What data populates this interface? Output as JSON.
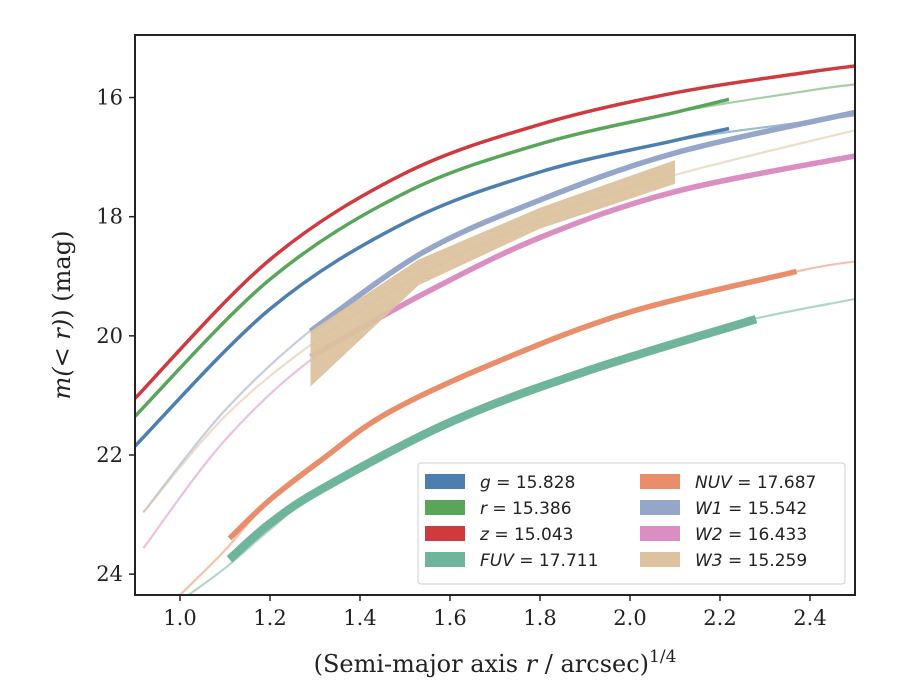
{
  "chart_data": {
    "type": "line",
    "title": "",
    "xlabel": {
      "open": "(Semi-major axis ",
      "var": "r",
      "mid": " / arcsec)",
      "sup": "1/4"
    },
    "ylabel": {
      "pre": "m(",
      "mid": "< r",
      "post": ") (mag)"
    },
    "xlim": [
      0.9,
      2.5
    ],
    "ylim": [
      24.35,
      14.95
    ],
    "y_inverted": true,
    "xticks": [
      "1.0",
      "1.2",
      "1.4",
      "1.6",
      "1.8",
      "2.0",
      "2.2",
      "2.4"
    ],
    "yticks": [
      "16",
      "18",
      "20",
      "22",
      "24"
    ],
    "grid": false,
    "legend_placement": "lower-right",
    "legend_columns": 2,
    "series": [
      {
        "name": "g",
        "legend_value": "15.828",
        "color": "#4c7fb0",
        "band": "thin",
        "model": {
          "x": [
            0.9,
            1.2,
            1.5,
            1.8,
            2.1,
            2.4,
            2.5
          ],
          "y": [
            21.85,
            19.55,
            18.1,
            17.25,
            16.72,
            16.4,
            16.3
          ]
        },
        "measured": {
          "x": [
            0.9,
            1.2,
            1.5,
            1.8,
            2.1,
            2.22
          ],
          "y": [
            21.85,
            19.55,
            18.1,
            17.25,
            16.72,
            16.52
          ]
        }
      },
      {
        "name": "r",
        "legend_value": "15.386",
        "color": "#59a55a",
        "band": "thin",
        "model": {
          "x": [
            0.9,
            1.2,
            1.5,
            1.8,
            2.1,
            2.4,
            2.5
          ],
          "y": [
            21.35,
            19.05,
            17.6,
            16.78,
            16.25,
            15.88,
            15.78
          ]
        },
        "measured": {
          "x": [
            0.9,
            1.2,
            1.5,
            1.8,
            2.1,
            2.22
          ],
          "y": [
            21.35,
            19.05,
            17.6,
            16.78,
            16.25,
            16.03
          ]
        }
      },
      {
        "name": "z",
        "legend_value": "15.043",
        "color": "#cf3a3f",
        "band": "thin",
        "model": {
          "x": [
            0.9,
            1.2,
            1.5,
            1.8,
            2.1,
            2.4,
            2.5
          ],
          "y": [
            21.05,
            18.72,
            17.27,
            16.45,
            15.92,
            15.57,
            15.47
          ]
        },
        "measured": {
          "x": [
            0.9,
            1.2,
            1.5,
            1.8,
            2.1,
            2.4,
            2.5
          ],
          "y": [
            21.05,
            18.72,
            17.27,
            16.45,
            15.92,
            15.57,
            15.47
          ]
        }
      },
      {
        "name": "FUV",
        "legend_value": "17.711",
        "color": "#6fb59c",
        "band": "wide",
        "model": {
          "x": [
            1.0,
            1.1,
            1.2,
            1.32,
            1.6,
            1.9,
            2.2,
            2.5
          ],
          "y": [
            24.45,
            23.9,
            23.25,
            22.55,
            21.45,
            20.6,
            19.85,
            19.38
          ]
        },
        "measured": {
          "x": [
            1.11,
            1.2,
            1.32,
            1.6,
            1.9,
            2.28
          ],
          "y": [
            23.75,
            23.15,
            22.55,
            21.45,
            20.6,
            19.72
          ]
        }
      },
      {
        "name": "NUV",
        "legend_value": "17.687",
        "color": "#e98e6a",
        "band": "medium",
        "model": {
          "x": [
            1.0,
            1.1,
            1.2,
            1.32,
            1.46,
            1.7,
            2.0,
            2.37,
            2.5
          ],
          "y": [
            24.35,
            23.6,
            22.75,
            22.05,
            21.3,
            20.45,
            19.6,
            18.92,
            18.75
          ]
        },
        "measured": {
          "x": [
            1.11,
            1.2,
            1.32,
            1.46,
            1.7,
            2.0,
            2.37
          ],
          "y": [
            23.4,
            22.75,
            22.05,
            21.3,
            20.45,
            19.6,
            18.92
          ]
        }
      },
      {
        "name": "W1",
        "legend_value": "15.542",
        "color": "#95a6c8",
        "band": "medium",
        "model": {
          "x": [
            0.92,
            1.1,
            1.3,
            1.54,
            1.8,
            2.1,
            2.5
          ],
          "y": [
            22.95,
            21.25,
            19.85,
            18.6,
            17.72,
            16.93,
            16.25
          ]
        },
        "measured": {
          "x": [
            1.29,
            1.54,
            1.8,
            2.1,
            2.5
          ],
          "y": [
            19.92,
            18.6,
            17.72,
            16.93,
            16.25
          ]
        }
      },
      {
        "name": "W2",
        "legend_value": "16.433",
        "color": "#da8ec2",
        "band": "medium",
        "model": {
          "x": [
            0.92,
            1.1,
            1.3,
            1.54,
            1.8,
            2.1,
            2.5
          ],
          "y": [
            23.55,
            21.75,
            20.35,
            19.3,
            18.35,
            17.58,
            16.98
          ]
        },
        "measured": {
          "x": [
            1.29,
            1.54,
            1.8,
            2.1,
            2.5
          ],
          "y": [
            20.35,
            19.3,
            18.35,
            17.58,
            16.98
          ]
        }
      },
      {
        "name": "W3",
        "legend_value": "15.259",
        "color": "#dcc29e",
        "band": "region",
        "model": {
          "x": [
            0.92,
            1.1,
            1.3,
            1.54,
            1.8,
            2.1,
            2.5
          ],
          "y": [
            22.95,
            21.35,
            20.1,
            18.95,
            18.05,
            17.3,
            16.55
          ]
        },
        "measured_upper": {
          "x": [
            1.29,
            1.53,
            1.8,
            2.1
          ],
          "y": [
            19.92,
            18.72,
            17.85,
            17.05
          ]
        },
        "measured_lower": {
          "x": [
            1.29,
            1.53,
            1.8,
            2.1
          ],
          "y": [
            20.85,
            19.15,
            18.2,
            17.45
          ]
        }
      }
    ]
  }
}
